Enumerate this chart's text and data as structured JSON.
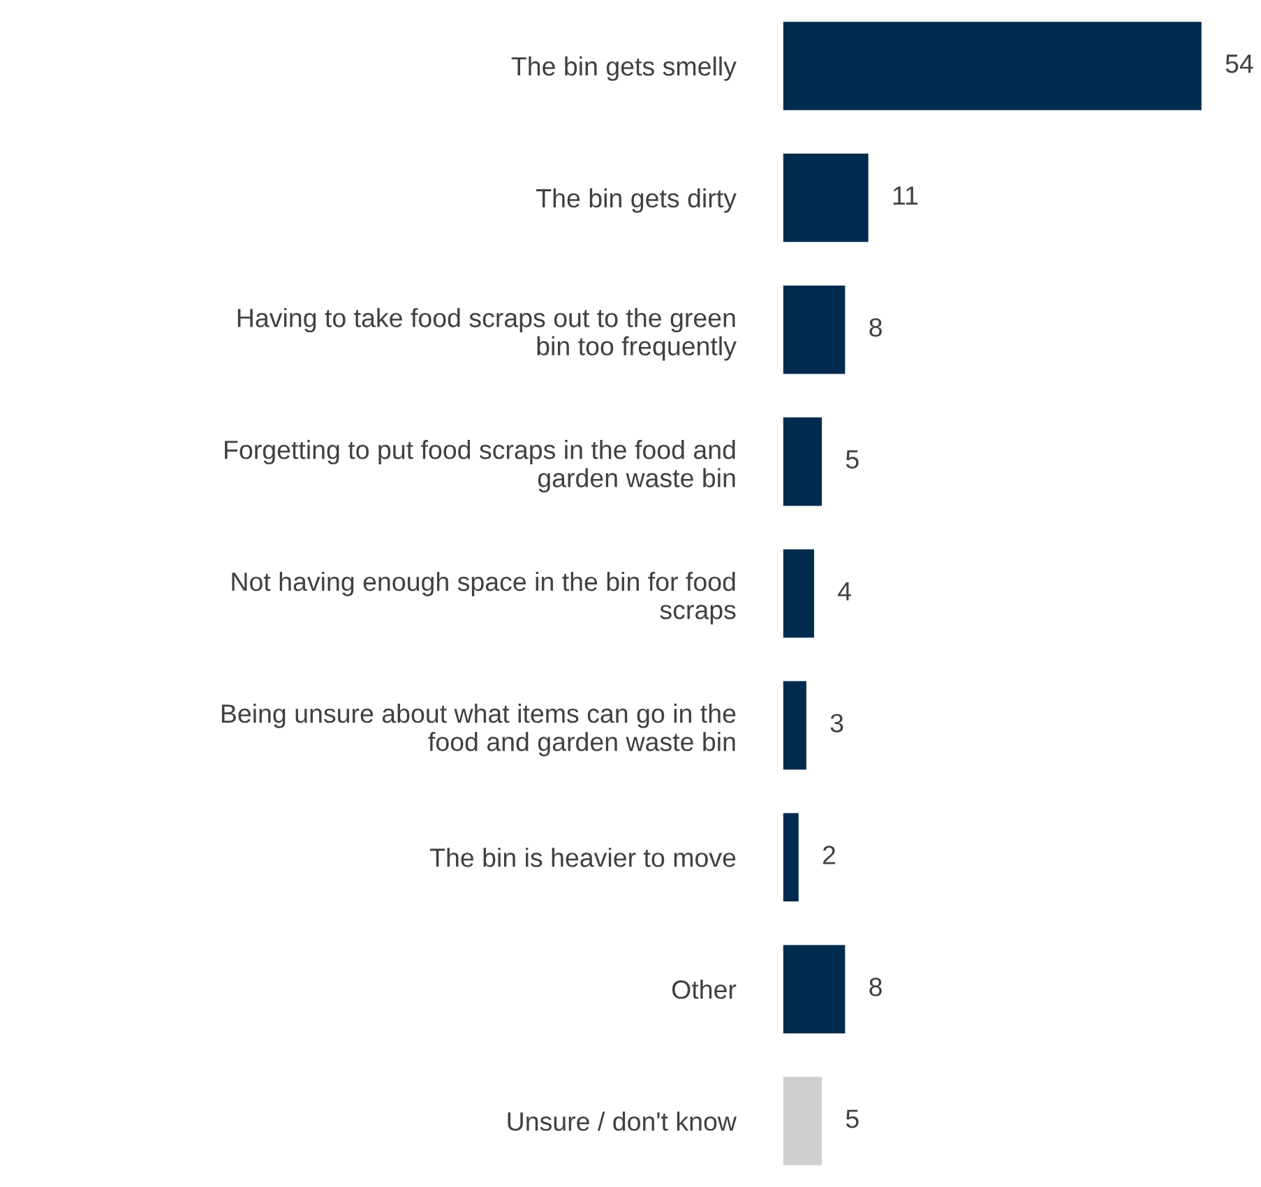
{
  "chart_data": {
    "type": "bar",
    "orientation": "horizontal",
    "categories": [
      "The bin gets smelly",
      "The bin gets dirty",
      "Having to take food scraps out to the green\nbin too frequently",
      "Forgetting to put food scraps in the food and\ngarden waste bin",
      "Not having enough space in the bin for food\nscraps",
      "Being unsure about what items can go in the\nfood and garden waste bin",
      "The bin is heavier to move",
      "Other",
      "Unsure / don't know"
    ],
    "values": [
      54,
      11,
      8,
      5,
      4,
      3,
      2,
      8,
      5
    ],
    "colors": [
      "#002b4f",
      "#002b4f",
      "#002b4f",
      "#002b4f",
      "#002b4f",
      "#002b4f",
      "#002b4f",
      "#002b4f",
      "#d0cece"
    ],
    "data_labels": true,
    "grid": false,
    "legend": false
  }
}
